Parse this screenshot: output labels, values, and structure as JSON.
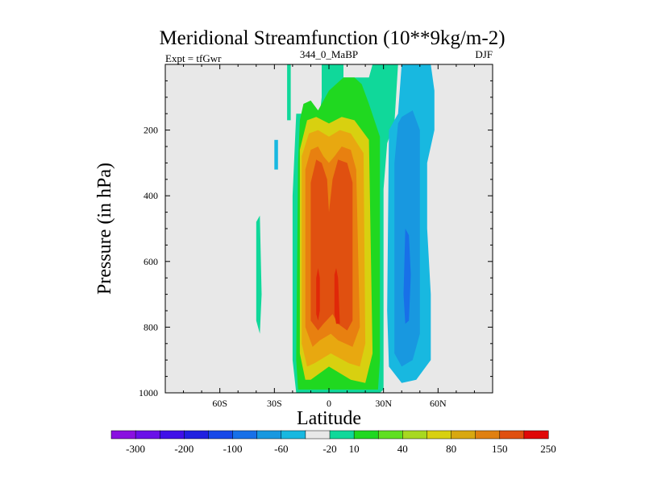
{
  "chart_data": {
    "type": "heatmap",
    "title": "Meridional Streamfunction (10**9kg/m-2)",
    "subtitle_left": "Expt = tfGwr",
    "subtitle_center": "344_0_MaBP",
    "subtitle_right": "DJF",
    "xlabel": "Latitude",
    "ylabel": "Pressure (in hPa)",
    "xlim": [
      -90,
      90
    ],
    "ylim": [
      1000,
      0
    ],
    "y_reversed": true,
    "xticks": [
      {
        "value": -60,
        "label": "60S"
      },
      {
        "value": -30,
        "label": "30S"
      },
      {
        "value": 0,
        "label": "0"
      },
      {
        "value": 30,
        "label": "30N"
      },
      {
        "value": 60,
        "label": "60N"
      }
    ],
    "yticks": [
      {
        "value": 200,
        "label": "200"
      },
      {
        "value": 400,
        "label": "400"
      },
      {
        "value": 600,
        "label": "600"
      },
      {
        "value": 800,
        "label": "800"
      },
      {
        "value": 1000,
        "label": "1000"
      }
    ],
    "background_color": "#e8e8e8",
    "colorbar": {
      "colors": [
        "#8a10e0",
        "#6a10e8",
        "#4010e8",
        "#2020e0",
        "#1848e8",
        "#1870e8",
        "#1898e0",
        "#18b8e0",
        "#e8e8e8",
        "#10d89a",
        "#20d820",
        "#60e020",
        "#a8d820",
        "#d8d010",
        "#d8a810",
        "#e08010",
        "#e05010",
        "#e00808"
      ],
      "labels": [
        "-300",
        "-200",
        "-100",
        "-60",
        "-20",
        "10",
        "40",
        "80",
        "150",
        "250"
      ]
    },
    "regions": [
      {
        "name": "contour-band-10",
        "color": "#10d89a",
        "value": 10,
        "points": [
          [
            -18,
            1000
          ],
          [
            -20,
            900
          ],
          [
            -20,
            400
          ],
          [
            -18,
            150
          ],
          [
            -8,
            150
          ],
          [
            -6,
            200
          ],
          [
            -4,
            100
          ],
          [
            -4,
            0
          ],
          [
            8,
            0
          ],
          [
            8,
            40
          ],
          [
            22,
            40
          ],
          [
            24,
            0
          ],
          [
            38,
            0
          ],
          [
            36,
            180
          ],
          [
            32,
            240
          ],
          [
            30,
            380
          ],
          [
            30,
            700
          ],
          [
            30,
            990
          ],
          [
            28,
            1000
          ]
        ]
      },
      {
        "name": "contour-band-10-upper-sh",
        "color": "#10d89a",
        "value": 10,
        "points": [
          [
            -23,
            0
          ],
          [
            -21,
            0
          ],
          [
            -21,
            170
          ],
          [
            -23,
            170
          ]
        ]
      },
      {
        "name": "contour-band-10-isolated",
        "color": "#10d89a",
        "value": 10,
        "points": [
          [
            -40,
            480
          ],
          [
            -38,
            460
          ],
          [
            -37,
            700
          ],
          [
            -38,
            820
          ],
          [
            -40,
            780
          ]
        ]
      },
      {
        "name": "contour-band-40",
        "color": "#20d820",
        "value": 40,
        "points": [
          [
            -17,
            990
          ],
          [
            -18,
            900
          ],
          [
            -17,
            300
          ],
          [
            -16,
            170
          ],
          [
            -14,
            120
          ],
          [
            -10,
            110
          ],
          [
            -6,
            140
          ],
          [
            -4,
            120
          ],
          [
            0,
            80
          ],
          [
            8,
            40
          ],
          [
            14,
            40
          ],
          [
            18,
            60
          ],
          [
            22,
            120
          ],
          [
            28,
            220
          ],
          [
            28,
            900
          ],
          [
            27,
            990
          ]
        ]
      },
      {
        "name": "contour-band-80",
        "color": "#d8d010",
        "value": 80,
        "points": [
          [
            -13,
            960
          ],
          [
            -16,
            880
          ],
          [
            -16,
            260
          ],
          [
            -12,
            170
          ],
          [
            -7,
            160
          ],
          [
            0,
            180
          ],
          [
            7,
            160
          ],
          [
            14,
            170
          ],
          [
            22,
            230
          ],
          [
            24,
            880
          ],
          [
            20,
            970
          ],
          [
            12,
            960
          ],
          [
            0,
            920
          ],
          [
            -10,
            960
          ]
        ]
      },
      {
        "name": "contour-band-100",
        "color": "#e8a810",
        "value": 100,
        "points": [
          [
            -12,
            920
          ],
          [
            -15,
            850
          ],
          [
            -15,
            280
          ],
          [
            -11,
            210
          ],
          [
            -6,
            200
          ],
          [
            0,
            220
          ],
          [
            6,
            200
          ],
          [
            12,
            210
          ],
          [
            19,
            270
          ],
          [
            20,
            850
          ],
          [
            17,
            920
          ],
          [
            11,
            910
          ],
          [
            1,
            880
          ],
          [
            -8,
            910
          ]
        ]
      },
      {
        "name": "contour-band-150",
        "color": "#e88010",
        "value": 150,
        "points": [
          [
            -9,
            860
          ],
          [
            -13,
            800
          ],
          [
            -13,
            320
          ],
          [
            -10,
            260
          ],
          [
            -6,
            250
          ],
          [
            -3,
            280
          ],
          [
            0,
            300
          ],
          [
            3,
            280
          ],
          [
            7,
            250
          ],
          [
            12,
            260
          ],
          [
            15,
            320
          ],
          [
            17,
            800
          ],
          [
            13,
            860
          ],
          [
            5,
            840
          ],
          [
            1,
            820
          ],
          [
            -5,
            840
          ]
        ]
      },
      {
        "name": "contour-band-200",
        "color": "#e05010",
        "value": 200,
        "points": [
          [
            -6,
            810
          ],
          [
            -10,
            780
          ],
          [
            -10,
            360
          ],
          [
            -7,
            290
          ],
          [
            -4,
            300
          ],
          [
            -1,
            350
          ],
          [
            0,
            450
          ],
          [
            2,
            350
          ],
          [
            5,
            290
          ],
          [
            10,
            300
          ],
          [
            13,
            360
          ],
          [
            13,
            780
          ],
          [
            10,
            810
          ],
          [
            5,
            790
          ],
          [
            2,
            760
          ],
          [
            -3,
            790
          ]
        ]
      },
      {
        "name": "contour-band-250-left",
        "color": "#e02808",
        "value": 250,
        "points": [
          [
            -7,
            650
          ],
          [
            -6,
            620
          ],
          [
            -5,
            650
          ],
          [
            -5,
            750
          ],
          [
            -6,
            780
          ],
          [
            -7,
            760
          ]
        ]
      },
      {
        "name": "contour-band-250-right",
        "color": "#e02808",
        "value": 250,
        "points": [
          [
            3,
            640
          ],
          [
            4,
            620
          ],
          [
            5,
            650
          ],
          [
            6,
            790
          ],
          [
            4,
            790
          ],
          [
            3,
            760
          ]
        ]
      },
      {
        "name": "contour-band-neg20",
        "color": "#18b8e0",
        "value": -20,
        "points": [
          [
            42,
            0
          ],
          [
            52,
            0
          ],
          [
            56,
            0
          ],
          [
            58,
            80
          ],
          [
            58,
            200
          ],
          [
            54,
            300
          ],
          [
            54,
            500
          ],
          [
            56,
            700
          ],
          [
            56,
            900
          ],
          [
            48,
            960
          ],
          [
            40,
            970
          ],
          [
            33,
            920
          ],
          [
            32,
            750
          ],
          [
            33,
            200
          ],
          [
            38,
            150
          ],
          [
            40,
            0
          ]
        ]
      },
      {
        "name": "contour-band-neg20-sh",
        "color": "#18b8e0",
        "value": -20,
        "points": [
          [
            -30,
            230
          ],
          [
            -28,
            230
          ],
          [
            -28,
            320
          ],
          [
            -30,
            320
          ]
        ]
      },
      {
        "name": "contour-band-neg60",
        "color": "#1898e0",
        "value": -60,
        "points": [
          [
            40,
            160
          ],
          [
            46,
            140
          ],
          [
            50,
            200
          ],
          [
            50,
            820
          ],
          [
            46,
            900
          ],
          [
            40,
            920
          ],
          [
            36,
            880
          ],
          [
            36,
            300
          ],
          [
            38,
            180
          ]
        ]
      },
      {
        "name": "contour-band-neg100",
        "color": "#1870e8",
        "value": -100,
        "points": [
          [
            42,
            500
          ],
          [
            44,
            520
          ],
          [
            45,
            640
          ],
          [
            44,
            780
          ],
          [
            42,
            790
          ],
          [
            41,
            700
          ]
        ]
      }
    ]
  }
}
